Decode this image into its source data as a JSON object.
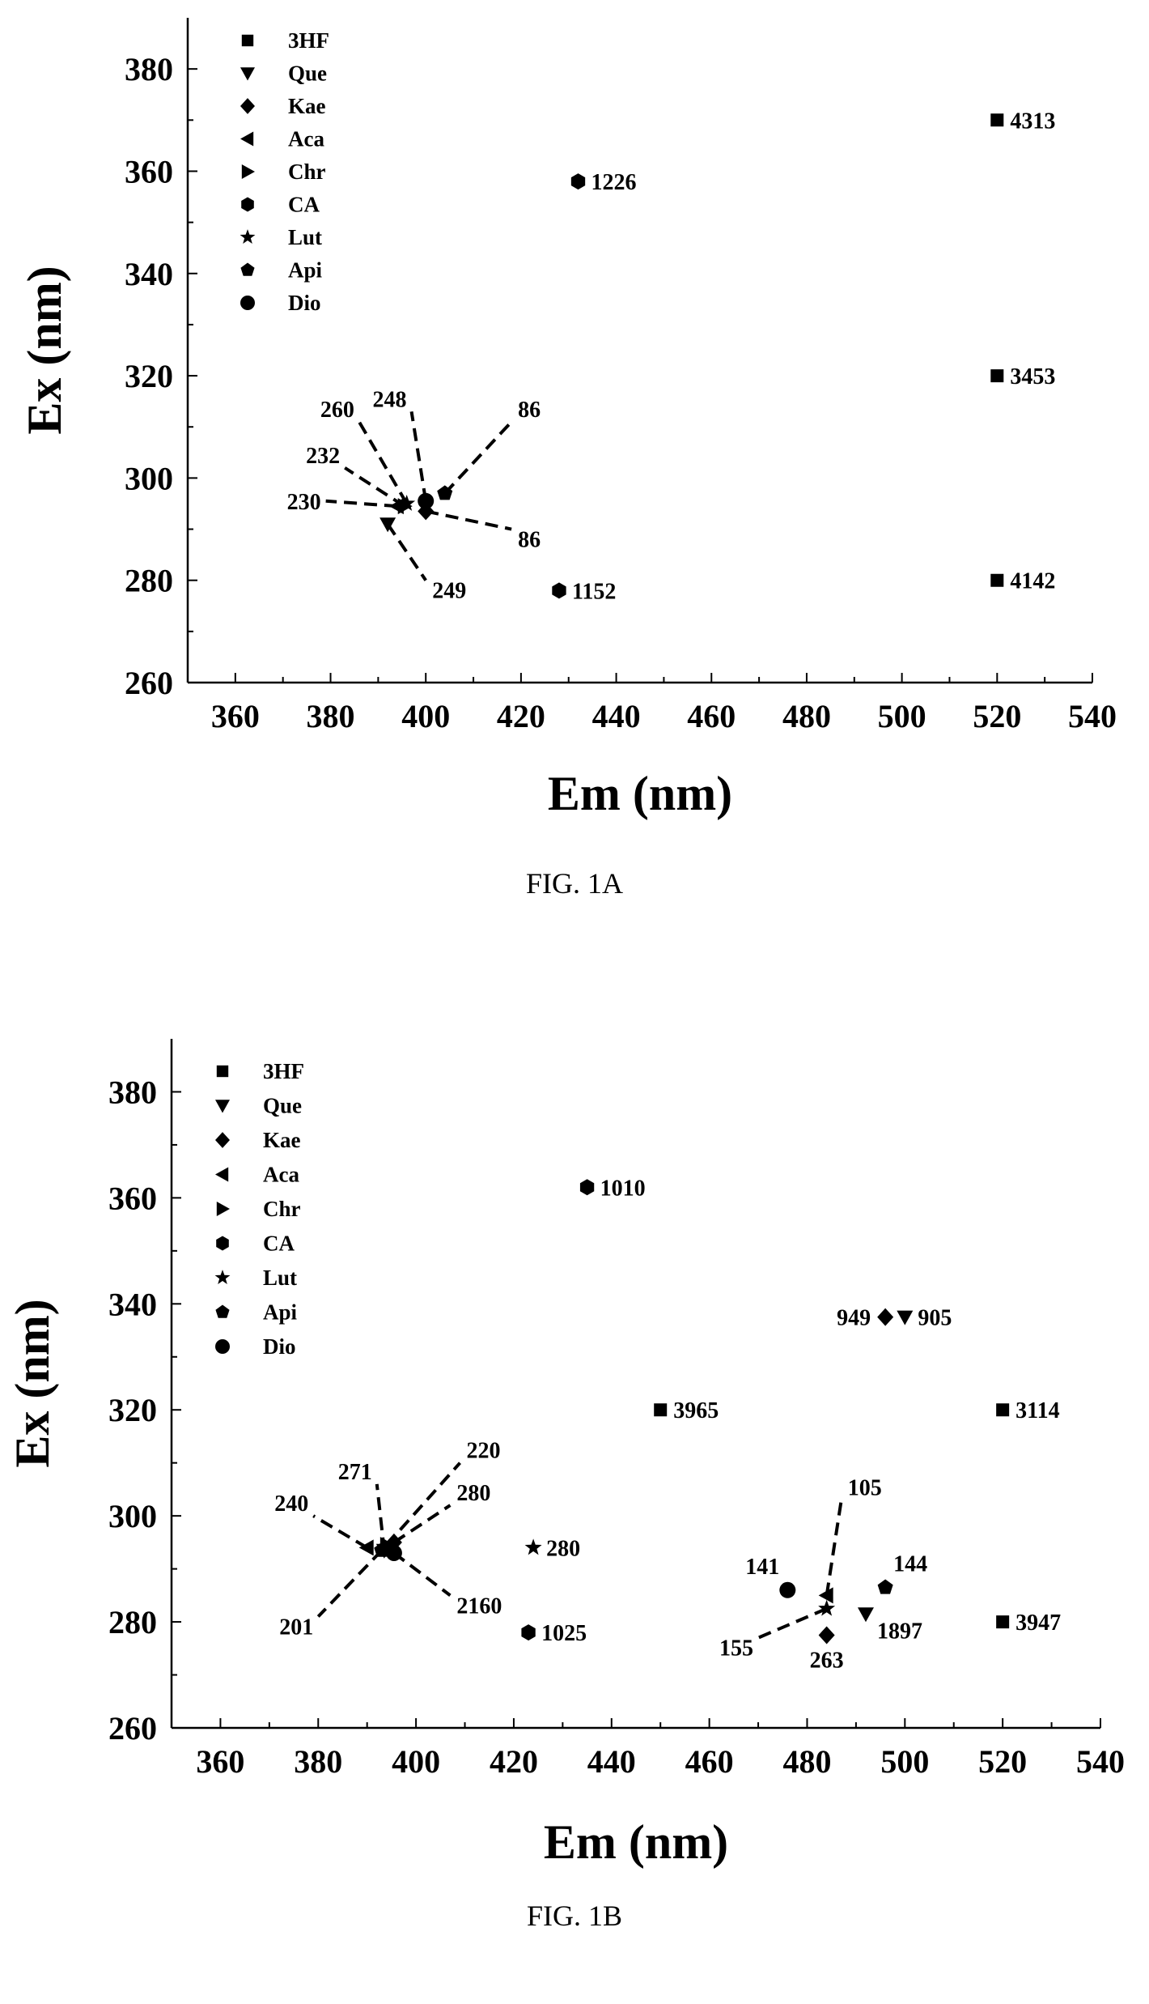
{
  "chart_data": [
    {
      "type": "scatter",
      "caption": "FIG. 1A",
      "xlabel": "Em (nm)",
      "ylabel": "Ex (nm)",
      "xlim": [
        350,
        540
      ],
      "ylim": [
        260,
        390
      ],
      "xticks": [
        360,
        380,
        400,
        420,
        440,
        460,
        480,
        500,
        520,
        540
      ],
      "yticks": [
        260,
        280,
        300,
        320,
        340,
        360,
        380
      ],
      "legend_position": "top-left",
      "series": [
        {
          "name": "3HF",
          "marker": "square"
        },
        {
          "name": "Que",
          "marker": "triangle-down"
        },
        {
          "name": "Kae",
          "marker": "diamond"
        },
        {
          "name": "Aca",
          "marker": "triangle-left"
        },
        {
          "name": "Chr",
          "marker": "triangle-right"
        },
        {
          "name": "CA",
          "marker": "hexagon"
        },
        {
          "name": "Lut",
          "marker": "star"
        },
        {
          "name": "Api",
          "marker": "pentagon"
        },
        {
          "name": "Dio",
          "marker": "circle"
        }
      ],
      "points": [
        {
          "series": "3HF",
          "x": 520,
          "y": 370,
          "label": "4313"
        },
        {
          "series": "3HF",
          "x": 520,
          "y": 320,
          "label": "3453"
        },
        {
          "series": "3HF",
          "x": 520,
          "y": 280,
          "label": "4142"
        },
        {
          "series": "CA",
          "x": 432,
          "y": 358,
          "label": "1226"
        },
        {
          "series": "CA",
          "x": 428,
          "y": 278,
          "label": "1152"
        },
        {
          "series": "Que",
          "x": 392,
          "y": 291,
          "label": "249",
          "label_at": [
            400,
            280
          ]
        },
        {
          "series": "Kae",
          "x": 400,
          "y": 293.5,
          "label": "86",
          "label_at": [
            418,
            290
          ]
        },
        {
          "series": "Api",
          "x": 404,
          "y": 297,
          "label": "86",
          "label_at": [
            418,
            311
          ]
        },
        {
          "series": "Dio",
          "x": 400,
          "y": 295.5,
          "label": "248",
          "label_at": [
            397,
            313
          ]
        },
        {
          "series": "Lut",
          "x": 396,
          "y": 295,
          "label": "260",
          "label_at": [
            386,
            311
          ]
        },
        {
          "series": "Chr",
          "x": 395.5,
          "y": 294.5,
          "label": "232",
          "label_at": [
            383,
            302
          ]
        },
        {
          "series": "Aca",
          "x": 394,
          "y": 294.5,
          "label": "230",
          "label_at": [
            379,
            295.5
          ]
        }
      ]
    },
    {
      "type": "scatter",
      "caption": "FIG. 1B",
      "xlabel": "Em (nm)",
      "ylabel": "Ex (nm)",
      "xlim": [
        350,
        540
      ],
      "ylim": [
        260,
        390
      ],
      "xticks": [
        360,
        380,
        400,
        420,
        440,
        460,
        480,
        500,
        520,
        540
      ],
      "yticks": [
        260,
        280,
        300,
        320,
        340,
        360,
        380
      ],
      "legend_position": "top-left",
      "series": [
        {
          "name": "3HF",
          "marker": "square"
        },
        {
          "name": "Que",
          "marker": "triangle-down"
        },
        {
          "name": "Kae",
          "marker": "diamond"
        },
        {
          "name": "Aca",
          "marker": "triangle-left"
        },
        {
          "name": "Chr",
          "marker": "triangle-right"
        },
        {
          "name": "CA",
          "marker": "hexagon"
        },
        {
          "name": "Lut",
          "marker": "star"
        },
        {
          "name": "Api",
          "marker": "pentagon"
        },
        {
          "name": "Dio",
          "marker": "circle"
        }
      ],
      "points": [
        {
          "series": "CA",
          "x": 435,
          "y": 362,
          "label": "1010"
        },
        {
          "series": "Kae",
          "x": 496,
          "y": 337.5,
          "label": "949",
          "label_side": "left"
        },
        {
          "series": "Que",
          "x": 500,
          "y": 337.5,
          "label": "905"
        },
        {
          "series": "3HF",
          "x": 450,
          "y": 320,
          "label": "3965"
        },
        {
          "series": "3HF",
          "x": 520,
          "y": 320,
          "label": "3114"
        },
        {
          "series": "3HF",
          "x": 520,
          "y": 280,
          "label": "3947"
        },
        {
          "series": "Lut",
          "x": 424,
          "y": 294,
          "label": "280"
        },
        {
          "series": "CA",
          "x": 423,
          "y": 278,
          "label": "1025"
        },
        {
          "series": "Dio",
          "x": 476,
          "y": 286,
          "label": "141",
          "label_side": "above-left"
        },
        {
          "series": "Api",
          "x": 496,
          "y": 286.5,
          "label": "144",
          "label_side": "above"
        },
        {
          "series": "Aca",
          "x": 484,
          "y": 285,
          "label": "105",
          "label_at": [
            487,
            303
          ]
        },
        {
          "series": "Lut",
          "x": 484,
          "y": 282.5,
          "label": "155",
          "label_at": [
            470,
            277
          ]
        },
        {
          "series": "Kae",
          "x": 484,
          "y": 277.5,
          "label": "263",
          "label_side": "below"
        },
        {
          "series": "Que",
          "x": 492,
          "y": 281.5,
          "label": "1897",
          "label_side": "below-right"
        },
        {
          "series": "Que",
          "x": 393.5,
          "y": 293.5,
          "label": "271",
          "label_at": [
            392,
            306
          ]
        },
        {
          "series": "Aca",
          "x": 390,
          "y": 294,
          "label": "240",
          "label_at": [
            379,
            300
          ]
        },
        {
          "series": "Chr",
          "x": 394,
          "y": 294.5,
          "label": "220",
          "label_at": [
            409,
            310
          ]
        },
        {
          "series": "Kae",
          "x": 395.5,
          "y": 295,
          "label": "280",
          "label_at": [
            407,
            302
          ]
        },
        {
          "series": "Dio",
          "x": 395.5,
          "y": 293,
          "label": "2160",
          "label_at": [
            407,
            285
          ]
        },
        {
          "series": "Api",
          "x": 393,
          "y": 293.5,
          "label": "201",
          "label_at": [
            380,
            281
          ]
        }
      ]
    }
  ]
}
